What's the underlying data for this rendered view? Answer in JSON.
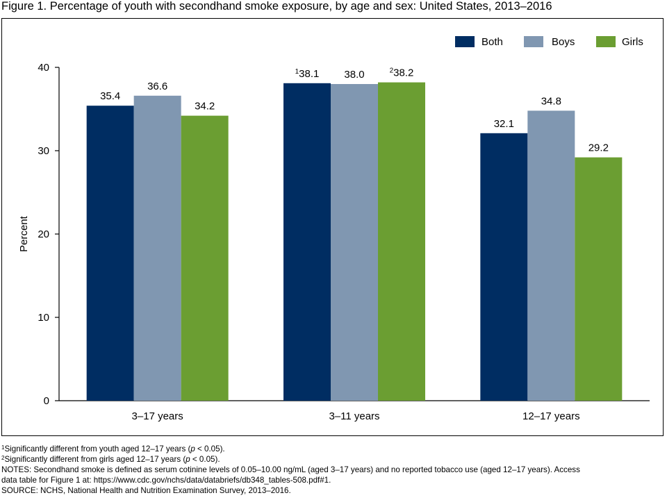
{
  "title": "Figure 1. Percentage of youth with secondhand smoke exposure, by age and sex: United States, 2013–2016",
  "chart_data": {
    "type": "bar",
    "ylabel": "Percent",
    "ylim": [
      0,
      40
    ],
    "yticks": [
      0,
      10,
      20,
      30,
      40
    ],
    "categories": [
      "3–17 years",
      "3–11 years",
      "12–17 years"
    ],
    "series": [
      {
        "name": "Both",
        "color": "#002d62",
        "values": [
          35.4,
          38.1,
          32.1
        ],
        "labels": [
          "35.4",
          "38.1",
          "32.1"
        ],
        "markers": [
          "",
          "1",
          ""
        ]
      },
      {
        "name": "Boys",
        "color": "#8097b1",
        "values": [
          36.6,
          38.0,
          34.8
        ],
        "labels": [
          "36.6",
          "38.0",
          "34.8"
        ],
        "markers": [
          "",
          "",
          ""
        ]
      },
      {
        "name": "Girls",
        "color": "#6b9e32",
        "values": [
          34.2,
          38.2,
          29.2
        ],
        "labels": [
          "34.2",
          "38.2",
          "29.2"
        ],
        "markers": [
          "",
          "2",
          ""
        ]
      }
    ],
    "legend_position": "top-right",
    "grid": false
  },
  "footnotes": {
    "note1_marker": "1",
    "note1_pre": "Significantly different from youth aged 12–17 years (",
    "note1_p": "p",
    "note1_post": " < 0.05).",
    "note2_marker": "2",
    "note2_pre": "Significantly different from girls aged 12–17 years (",
    "note2_p": "p",
    "note2_post": " < 0.05).",
    "notes_line1": "NOTES: Secondhand smoke is defined as serum cotinine levels of 0.05–10.00 ng/mL (aged 3–17 years) and no reported tobacco use (aged 12–17 years). Access",
    "notes_line2": "data table for Figure 1 at: https://www.cdc.gov/nchs/data/databriefs/db348_tables-508.pdf#1.",
    "source": "SOURCE: NCHS, National Health and Nutrition Examination Survey, 2013–2016."
  }
}
